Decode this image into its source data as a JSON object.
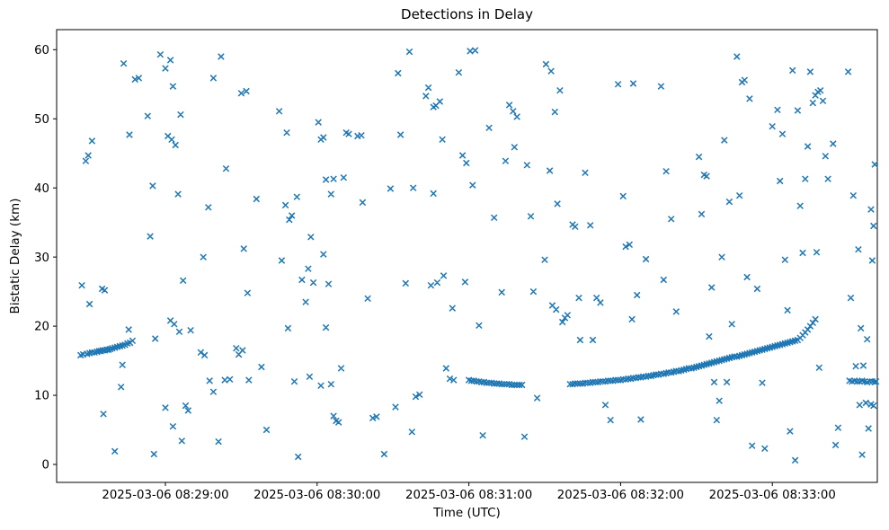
{
  "chart_data": {
    "type": "scatter",
    "title": "Detections in Delay",
    "xlabel": "Time (UTC)",
    "ylabel": "Bistatic Delay (km)",
    "marker": "x",
    "marker_color": "#1f77b4",
    "grid": false,
    "legend": "none",
    "x_unit": "seconds after 2025-03-06 08:28:00 UTC",
    "xlim": [
      17,
      341.5
    ],
    "ylim": [
      -2.6,
      62.9
    ],
    "x_ticks": [
      {
        "value": 60,
        "label": "2025-03-06 08:29:00"
      },
      {
        "value": 120,
        "label": "2025-03-06 08:30:00"
      },
      {
        "value": 180,
        "label": "2025-03-06 08:31:00"
      },
      {
        "value": 240,
        "label": "2025-03-06 08:32:00"
      },
      {
        "value": 300,
        "label": "2025-03-06 08:33:00"
      }
    ],
    "y_ticks": [
      {
        "value": 0,
        "label": "0"
      },
      {
        "value": 10,
        "label": "10"
      },
      {
        "value": 20,
        "label": "20"
      },
      {
        "value": 30,
        "label": "30"
      },
      {
        "value": 40,
        "label": "40"
      },
      {
        "value": 50,
        "label": "50"
      },
      {
        "value": 60,
        "label": "60"
      }
    ],
    "points": [
      [
        26.5,
        15.8
      ],
      [
        27.5,
        15.9
      ],
      [
        29,
        16.0
      ],
      [
        30,
        16.1
      ],
      [
        31,
        16.2
      ],
      [
        32,
        16.2
      ],
      [
        33,
        16.3
      ],
      [
        33.8,
        16.4
      ],
      [
        34.5,
        16.4
      ],
      [
        35.2,
        16.5
      ],
      [
        36,
        16.5
      ],
      [
        36.8,
        16.6
      ],
      [
        37.5,
        16.6
      ],
      [
        38.2,
        16.7
      ],
      [
        39,
        16.8
      ],
      [
        40,
        16.9
      ],
      [
        41,
        17.0
      ],
      [
        42,
        17.1
      ],
      [
        43,
        17.2
      ],
      [
        44,
        17.3
      ],
      [
        45,
        17.5
      ],
      [
        46,
        17.6
      ],
      [
        45.5,
        19.5
      ],
      [
        47,
        17.9
      ],
      [
        27,
        25.9
      ],
      [
        30,
        23.2
      ],
      [
        28.5,
        43.9
      ],
      [
        29.5,
        44.7
      ],
      [
        31,
        46.8
      ],
      [
        35,
        25.4
      ],
      [
        36,
        25.2
      ],
      [
        35.5,
        7.3
      ],
      [
        40,
        1.9
      ],
      [
        42.5,
        11.2
      ],
      [
        43,
        14.4
      ],
      [
        45.8,
        47.7
      ],
      [
        43.5,
        58.0
      ],
      [
        48,
        55.7
      ],
      [
        49.5,
        55.9
      ],
      [
        55,
        40.3
      ],
      [
        53,
        50.4
      ],
      [
        54,
        33.0
      ],
      [
        56,
        18.2
      ],
      [
        55.5,
        1.5
      ],
      [
        58,
        59.3
      ],
      [
        60,
        57.3
      ],
      [
        62,
        58.5
      ],
      [
        61,
        47.5
      ],
      [
        62.5,
        47.0
      ],
      [
        64,
        46.2
      ],
      [
        63,
        54.7
      ],
      [
        66,
        50.6
      ],
      [
        65,
        39.1
      ],
      [
        62,
        20.8
      ],
      [
        63.5,
        20.3
      ],
      [
        65.5,
        19.2
      ],
      [
        60,
        8.2
      ],
      [
        63,
        5.5
      ],
      [
        66.5,
        3.4
      ],
      [
        68,
        8.5
      ],
      [
        69,
        7.8
      ],
      [
        67,
        26.6
      ],
      [
        70,
        19.4
      ],
      [
        75,
        30.0
      ],
      [
        77,
        37.2
      ],
      [
        79,
        55.9
      ],
      [
        82,
        59.0
      ],
      [
        74,
        16.2
      ],
      [
        75.5,
        15.8
      ],
      [
        77.5,
        12.1
      ],
      [
        79,
        10.5
      ],
      [
        81,
        3.3
      ],
      [
        84,
        42.8
      ],
      [
        83.5,
        12.2
      ],
      [
        85.5,
        12.3
      ],
      [
        90,
        53.7
      ],
      [
        92,
        54.0
      ],
      [
        91,
        31.2
      ],
      [
        88,
        16.8
      ],
      [
        89,
        15.9
      ],
      [
        90.5,
        16.5
      ],
      [
        93,
        12.2
      ],
      [
        92.5,
        24.8
      ],
      [
        96,
        38.4
      ],
      [
        98,
        14.1
      ],
      [
        100,
        5.0
      ],
      [
        105,
        51.1
      ],
      [
        108,
        48.0
      ],
      [
        106,
        29.5
      ],
      [
        107.5,
        37.5
      ],
      [
        109,
        35.4
      ],
      [
        110,
        36.0
      ],
      [
        112,
        38.7
      ],
      [
        108.5,
        19.7
      ],
      [
        111,
        12.0
      ],
      [
        112.5,
        1.1
      ],
      [
        114,
        26.7
      ],
      [
        115.5,
        23.5
      ],
      [
        116.5,
        28.3
      ],
      [
        117.5,
        32.9
      ],
      [
        117,
        12.7
      ],
      [
        118.5,
        26.3
      ],
      [
        120.5,
        49.5
      ],
      [
        121.5,
        47.0
      ],
      [
        122.5,
        47.3
      ],
      [
        123.5,
        41.2
      ],
      [
        125.5,
        39.1
      ],
      [
        126.5,
        41.3
      ],
      [
        122.5,
        30.4
      ],
      [
        124.5,
        26.1
      ],
      [
        123.5,
        19.8
      ],
      [
        121.5,
        11.4
      ],
      [
        125.5,
        11.6
      ],
      [
        126.5,
        7.0
      ],
      [
        127.5,
        6.3
      ],
      [
        128.5,
        6.1
      ],
      [
        129.5,
        13.9
      ],
      [
        131.5,
        48.0
      ],
      [
        132.5,
        47.8
      ],
      [
        130.5,
        41.5
      ],
      [
        136,
        47.5
      ],
      [
        137.5,
        47.6
      ],
      [
        138,
        37.9
      ],
      [
        140,
        24.0
      ],
      [
        142,
        6.7
      ],
      [
        143.5,
        6.9
      ],
      [
        146.5,
        1.5
      ],
      [
        149,
        39.9
      ],
      [
        152,
        56.6
      ],
      [
        156.5,
        59.7
      ],
      [
        153,
        47.7
      ],
      [
        158,
        40.0
      ],
      [
        155,
        26.2
      ],
      [
        151,
        8.3
      ],
      [
        157.5,
        4.7
      ],
      [
        159,
        9.8
      ],
      [
        160.5,
        10.1
      ],
      [
        163,
        53.3
      ],
      [
        164,
        54.5
      ],
      [
        166,
        51.7
      ],
      [
        167,
        51.9
      ],
      [
        168.5,
        52.5
      ],
      [
        169.5,
        47.0
      ],
      [
        166,
        39.2
      ],
      [
        165,
        25.9
      ],
      [
        167.5,
        26.3
      ],
      [
        170,
        27.3
      ],
      [
        171,
        13.9
      ],
      [
        172.5,
        12.4
      ],
      [
        174,
        12.2
      ],
      [
        176,
        56.7
      ],
      [
        177.5,
        44.7
      ],
      [
        173.5,
        22.6
      ],
      [
        178.5,
        26.4
      ],
      [
        179,
        43.6
      ],
      [
        180,
        12.2
      ],
      [
        181,
        12.1
      ],
      [
        182,
        12.1
      ],
      [
        183,
        12.0
      ],
      [
        184,
        12.0
      ],
      [
        185,
        11.9
      ],
      [
        186,
        11.9
      ],
      [
        187,
        11.8
      ],
      [
        188,
        11.8
      ],
      [
        189,
        11.8
      ],
      [
        190,
        11.7
      ],
      [
        191,
        11.7
      ],
      [
        192,
        11.7
      ],
      [
        193,
        11.6
      ],
      [
        194,
        11.6
      ],
      [
        195,
        11.6
      ],
      [
        196,
        11.6
      ],
      [
        197,
        11.5
      ],
      [
        198,
        11.5
      ],
      [
        199,
        11.5
      ],
      [
        200,
        11.5
      ],
      [
        201,
        11.5
      ],
      [
        180.5,
        59.8
      ],
      [
        182.5,
        59.9
      ],
      [
        181.5,
        40.4
      ],
      [
        184,
        20.1
      ],
      [
        185.5,
        4.2
      ],
      [
        188,
        48.7
      ],
      [
        190,
        35.7
      ],
      [
        193,
        24.9
      ],
      [
        194.5,
        43.9
      ],
      [
        196,
        52.0
      ],
      [
        197.5,
        51.1
      ],
      [
        199,
        50.3
      ],
      [
        198,
        45.9
      ],
      [
        202,
        4.0
      ],
      [
        204.5,
        35.9
      ],
      [
        205.5,
        25.0
      ],
      [
        207,
        9.6
      ],
      [
        203,
        43.3
      ],
      [
        210.5,
        57.9
      ],
      [
        212.5,
        56.9
      ],
      [
        214,
        51.0
      ],
      [
        216,
        54.1
      ],
      [
        212,
        42.5
      ],
      [
        215,
        37.7
      ],
      [
        210,
        29.6
      ],
      [
        213,
        23.0
      ],
      [
        214.5,
        22.4
      ],
      [
        217,
        20.6
      ],
      [
        218,
        21.2
      ],
      [
        219,
        21.6
      ],
      [
        221,
        34.7
      ],
      [
        222,
        34.4
      ],
      [
        223.5,
        24.1
      ],
      [
        224,
        18.0
      ],
      [
        220,
        11.6
      ],
      [
        221,
        11.6
      ],
      [
        222,
        11.7
      ],
      [
        223,
        11.7
      ],
      [
        224,
        11.7
      ],
      [
        225,
        11.7
      ],
      [
        226,
        11.8
      ],
      [
        227,
        11.8
      ],
      [
        228,
        11.8
      ],
      [
        229,
        11.9
      ],
      [
        230,
        11.9
      ],
      [
        231,
        11.9
      ],
      [
        232,
        12.0
      ],
      [
        233,
        12.0
      ],
      [
        234,
        12.0
      ],
      [
        235,
        12.1
      ],
      [
        236,
        12.1
      ],
      [
        237,
        12.1
      ],
      [
        238,
        12.2
      ],
      [
        239,
        12.2
      ],
      [
        240,
        12.2
      ],
      [
        241,
        12.3
      ],
      [
        242,
        12.3
      ],
      [
        243,
        12.4
      ],
      [
        244,
        12.4
      ],
      [
        245,
        12.5
      ],
      [
        246,
        12.5
      ],
      [
        247,
        12.6
      ],
      [
        248,
        12.6
      ],
      [
        249,
        12.7
      ],
      [
        250,
        12.7
      ],
      [
        251,
        12.8
      ],
      [
        252,
        12.8
      ],
      [
        253,
        12.9
      ],
      [
        254,
        13.0
      ],
      [
        255,
        13.0
      ],
      [
        256,
        13.1
      ],
      [
        257,
        13.1
      ],
      [
        258,
        13.2
      ],
      [
        259,
        13.3
      ],
      [
        260,
        13.3
      ],
      [
        261,
        13.4
      ],
      [
        262,
        13.5
      ],
      [
        263,
        13.5
      ],
      [
        264,
        13.6
      ],
      [
        265,
        13.7
      ],
      [
        266,
        13.8
      ],
      [
        267,
        13.9
      ],
      [
        268,
        13.9
      ],
      [
        269,
        14.0
      ],
      [
        226,
        42.2
      ],
      [
        228,
        34.6
      ],
      [
        230.5,
        24.1
      ],
      [
        232,
        23.4
      ],
      [
        229,
        18.0
      ],
      [
        234,
        8.6
      ],
      [
        236,
        6.4
      ],
      [
        239,
        55.0
      ],
      [
        245,
        55.1
      ],
      [
        242,
        31.5
      ],
      [
        243.5,
        31.8
      ],
      [
        241,
        38.8
      ],
      [
        246.5,
        24.5
      ],
      [
        244.5,
        21.0
      ],
      [
        248,
        6.5
      ],
      [
        250,
        29.7
      ],
      [
        256,
        54.7
      ],
      [
        258,
        42.4
      ],
      [
        260,
        35.5
      ],
      [
        257,
        26.7
      ],
      [
        262,
        22.1
      ],
      [
        271,
        44.5
      ],
      [
        273,
        41.9
      ],
      [
        274,
        41.7
      ],
      [
        272,
        36.2
      ],
      [
        276,
        25.6
      ],
      [
        275,
        18.5
      ],
      [
        277,
        11.9
      ],
      [
        279,
        9.2
      ],
      [
        278,
        6.4
      ],
      [
        281,
        46.9
      ],
      [
        283,
        38.0
      ],
      [
        280,
        30.0
      ],
      [
        284,
        20.3
      ],
      [
        282,
        11.9
      ],
      [
        270,
        14.1
      ],
      [
        271,
        14.2
      ],
      [
        272,
        14.3
      ],
      [
        273,
        14.4
      ],
      [
        274,
        14.5
      ],
      [
        275,
        14.6
      ],
      [
        276,
        14.7
      ],
      [
        277,
        14.8
      ],
      [
        278,
        14.9
      ],
      [
        279,
        15.0
      ],
      [
        280,
        15.1
      ],
      [
        281,
        15.2
      ],
      [
        282,
        15.3
      ],
      [
        283,
        15.4
      ],
      [
        284,
        15.5
      ],
      [
        285,
        15.6
      ],
      [
        286,
        15.6
      ],
      [
        287,
        15.7
      ],
      [
        288,
        15.8
      ],
      [
        289,
        15.9
      ],
      [
        290,
        16.0
      ],
      [
        291,
        16.1
      ],
      [
        292,
        16.2
      ],
      [
        293,
        16.3
      ],
      [
        294,
        16.4
      ],
      [
        295,
        16.5
      ],
      [
        296,
        16.6
      ],
      [
        297,
        16.7
      ],
      [
        298,
        16.8
      ],
      [
        299,
        16.9
      ],
      [
        286,
        59.0
      ],
      [
        288,
        55.3
      ],
      [
        289,
        55.6
      ],
      [
        291,
        52.9
      ],
      [
        287,
        38.9
      ],
      [
        290,
        27.1
      ],
      [
        294,
        25.4
      ],
      [
        296,
        11.8
      ],
      [
        292,
        2.7
      ],
      [
        297,
        2.3
      ],
      [
        300,
        17.0
      ],
      [
        301,
        17.1
      ],
      [
        302,
        17.2
      ],
      [
        303,
        17.3
      ],
      [
        304,
        17.4
      ],
      [
        305,
        17.5
      ],
      [
        306,
        17.6
      ],
      [
        307,
        17.7
      ],
      [
        308,
        17.8
      ],
      [
        309,
        17.9
      ],
      [
        310,
        18.0
      ],
      [
        311,
        18.3
      ],
      [
        312,
        18.7
      ],
      [
        313,
        19.1
      ],
      [
        314,
        19.5
      ],
      [
        315,
        20.0
      ],
      [
        316,
        20.5
      ],
      [
        317,
        21.0
      ],
      [
        300,
        48.9
      ],
      [
        302,
        51.3
      ],
      [
        304,
        47.8
      ],
      [
        303,
        41.0
      ],
      [
        305,
        29.6
      ],
      [
        306,
        22.3
      ],
      [
        307,
        4.8
      ],
      [
        309,
        0.6
      ],
      [
        311,
        37.4
      ],
      [
        312,
        30.6
      ],
      [
        313,
        41.3
      ],
      [
        310,
        51.2
      ],
      [
        308,
        57.0
      ],
      [
        314,
        46.0
      ],
      [
        315,
        56.8
      ],
      [
        316,
        52.3
      ],
      [
        317,
        53.4
      ],
      [
        318,
        53.9
      ],
      [
        319,
        54.1
      ],
      [
        320,
        52.6
      ],
      [
        321,
        44.6
      ],
      [
        322,
        41.3
      ],
      [
        317.5,
        30.7
      ],
      [
        318.5,
        14.0
      ],
      [
        325,
        2.8
      ],
      [
        326,
        5.3
      ],
      [
        324,
        46.4
      ],
      [
        330,
        56.8
      ],
      [
        332,
        38.9
      ],
      [
        334,
        31.1
      ],
      [
        331,
        24.1
      ],
      [
        335,
        19.7
      ],
      [
        333,
        14.2
      ],
      [
        336,
        14.3
      ],
      [
        337,
        8.9
      ],
      [
        334.5,
        8.6
      ],
      [
        338,
        5.2
      ],
      [
        335.5,
        1.4
      ],
      [
        339,
        36.9
      ],
      [
        340,
        34.5
      ],
      [
        339.5,
        29.5
      ],
      [
        340.5,
        43.4
      ],
      [
        337.5,
        18.1
      ],
      [
        339,
        8.7
      ],
      [
        340,
        8.5
      ],
      [
        330.5,
        12.1
      ],
      [
        331.5,
        12.0
      ],
      [
        332.5,
        12.1
      ],
      [
        333.5,
        12.0
      ],
      [
        334.5,
        12.0
      ],
      [
        335.5,
        12.1
      ],
      [
        336.5,
        12.0
      ],
      [
        337.5,
        11.9
      ],
      [
        338.5,
        12.0
      ],
      [
        339.5,
        12.0
      ],
      [
        340.5,
        11.9
      ],
      [
        341,
        12.0
      ]
    ]
  }
}
